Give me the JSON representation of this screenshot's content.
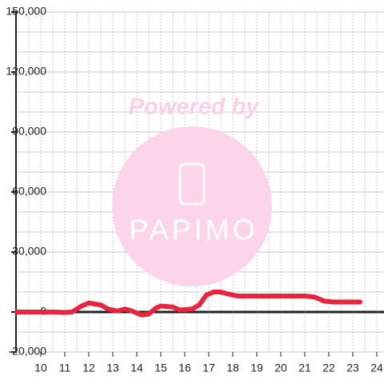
{
  "chart_data": {
    "type": "line",
    "watermark": {
      "caption": "Powered by",
      "logo_text": "PAPIMO"
    },
    "x": [
      9,
      10,
      10.5,
      11,
      11.3,
      11.7,
      12,
      12.5,
      12.8,
      13.2,
      13.5,
      13.8,
      14.2,
      14.5,
      14.8,
      15,
      15.5,
      15.8,
      16.3,
      16.6,
      16.9,
      17.2,
      17.5,
      17.8,
      18.2,
      19,
      20,
      21,
      21.4,
      21.8,
      22.2,
      23,
      23.3
    ],
    "series": [
      {
        "color": "#e8253f",
        "values": [
          0,
          0,
          0,
          -200,
          0,
          3000,
          4500,
          3500,
          1500,
          500,
          1500,
          500,
          -1500,
          -1000,
          2000,
          3000,
          2500,
          1000,
          1500,
          3500,
          8500,
          10000,
          10000,
          9000,
          8000,
          8000,
          8000,
          8000,
          7500,
          5500,
          5000,
          5000,
          5000
        ]
      }
    ],
    "xlim": [
      9,
      24.3
    ],
    "ylim": [
      -20000,
      150000
    ],
    "xticks": [
      10,
      11,
      12,
      13,
      14,
      15,
      16,
      17,
      18,
      19,
      20,
      21,
      22,
      23,
      24
    ],
    "yticks": [
      {
        "value": -20000,
        "label": "-20,000"
      },
      0,
      {
        "value": 30000,
        "label": "30,000"
      },
      {
        "value": 60000,
        "label": "60,000"
      },
      {
        "value": 90000,
        "label": "90,000"
      },
      {
        "value": 120000,
        "label": "120,000"
      },
      {
        "value": 150000,
        "label": "150,000"
      }
    ],
    "y_minor_ticks": [
      -10000,
      10000,
      20000,
      40000,
      50000,
      70000,
      80000,
      100000,
      110000,
      130000,
      140000
    ],
    "x_minor_ticks": [
      9.5,
      10.5,
      11.5,
      12.5,
      13.5,
      14.5,
      15.5,
      16.5,
      17.5,
      18.5,
      19.5,
      20.5,
      21.5,
      22.5,
      23.5
    ],
    "grid": true
  }
}
